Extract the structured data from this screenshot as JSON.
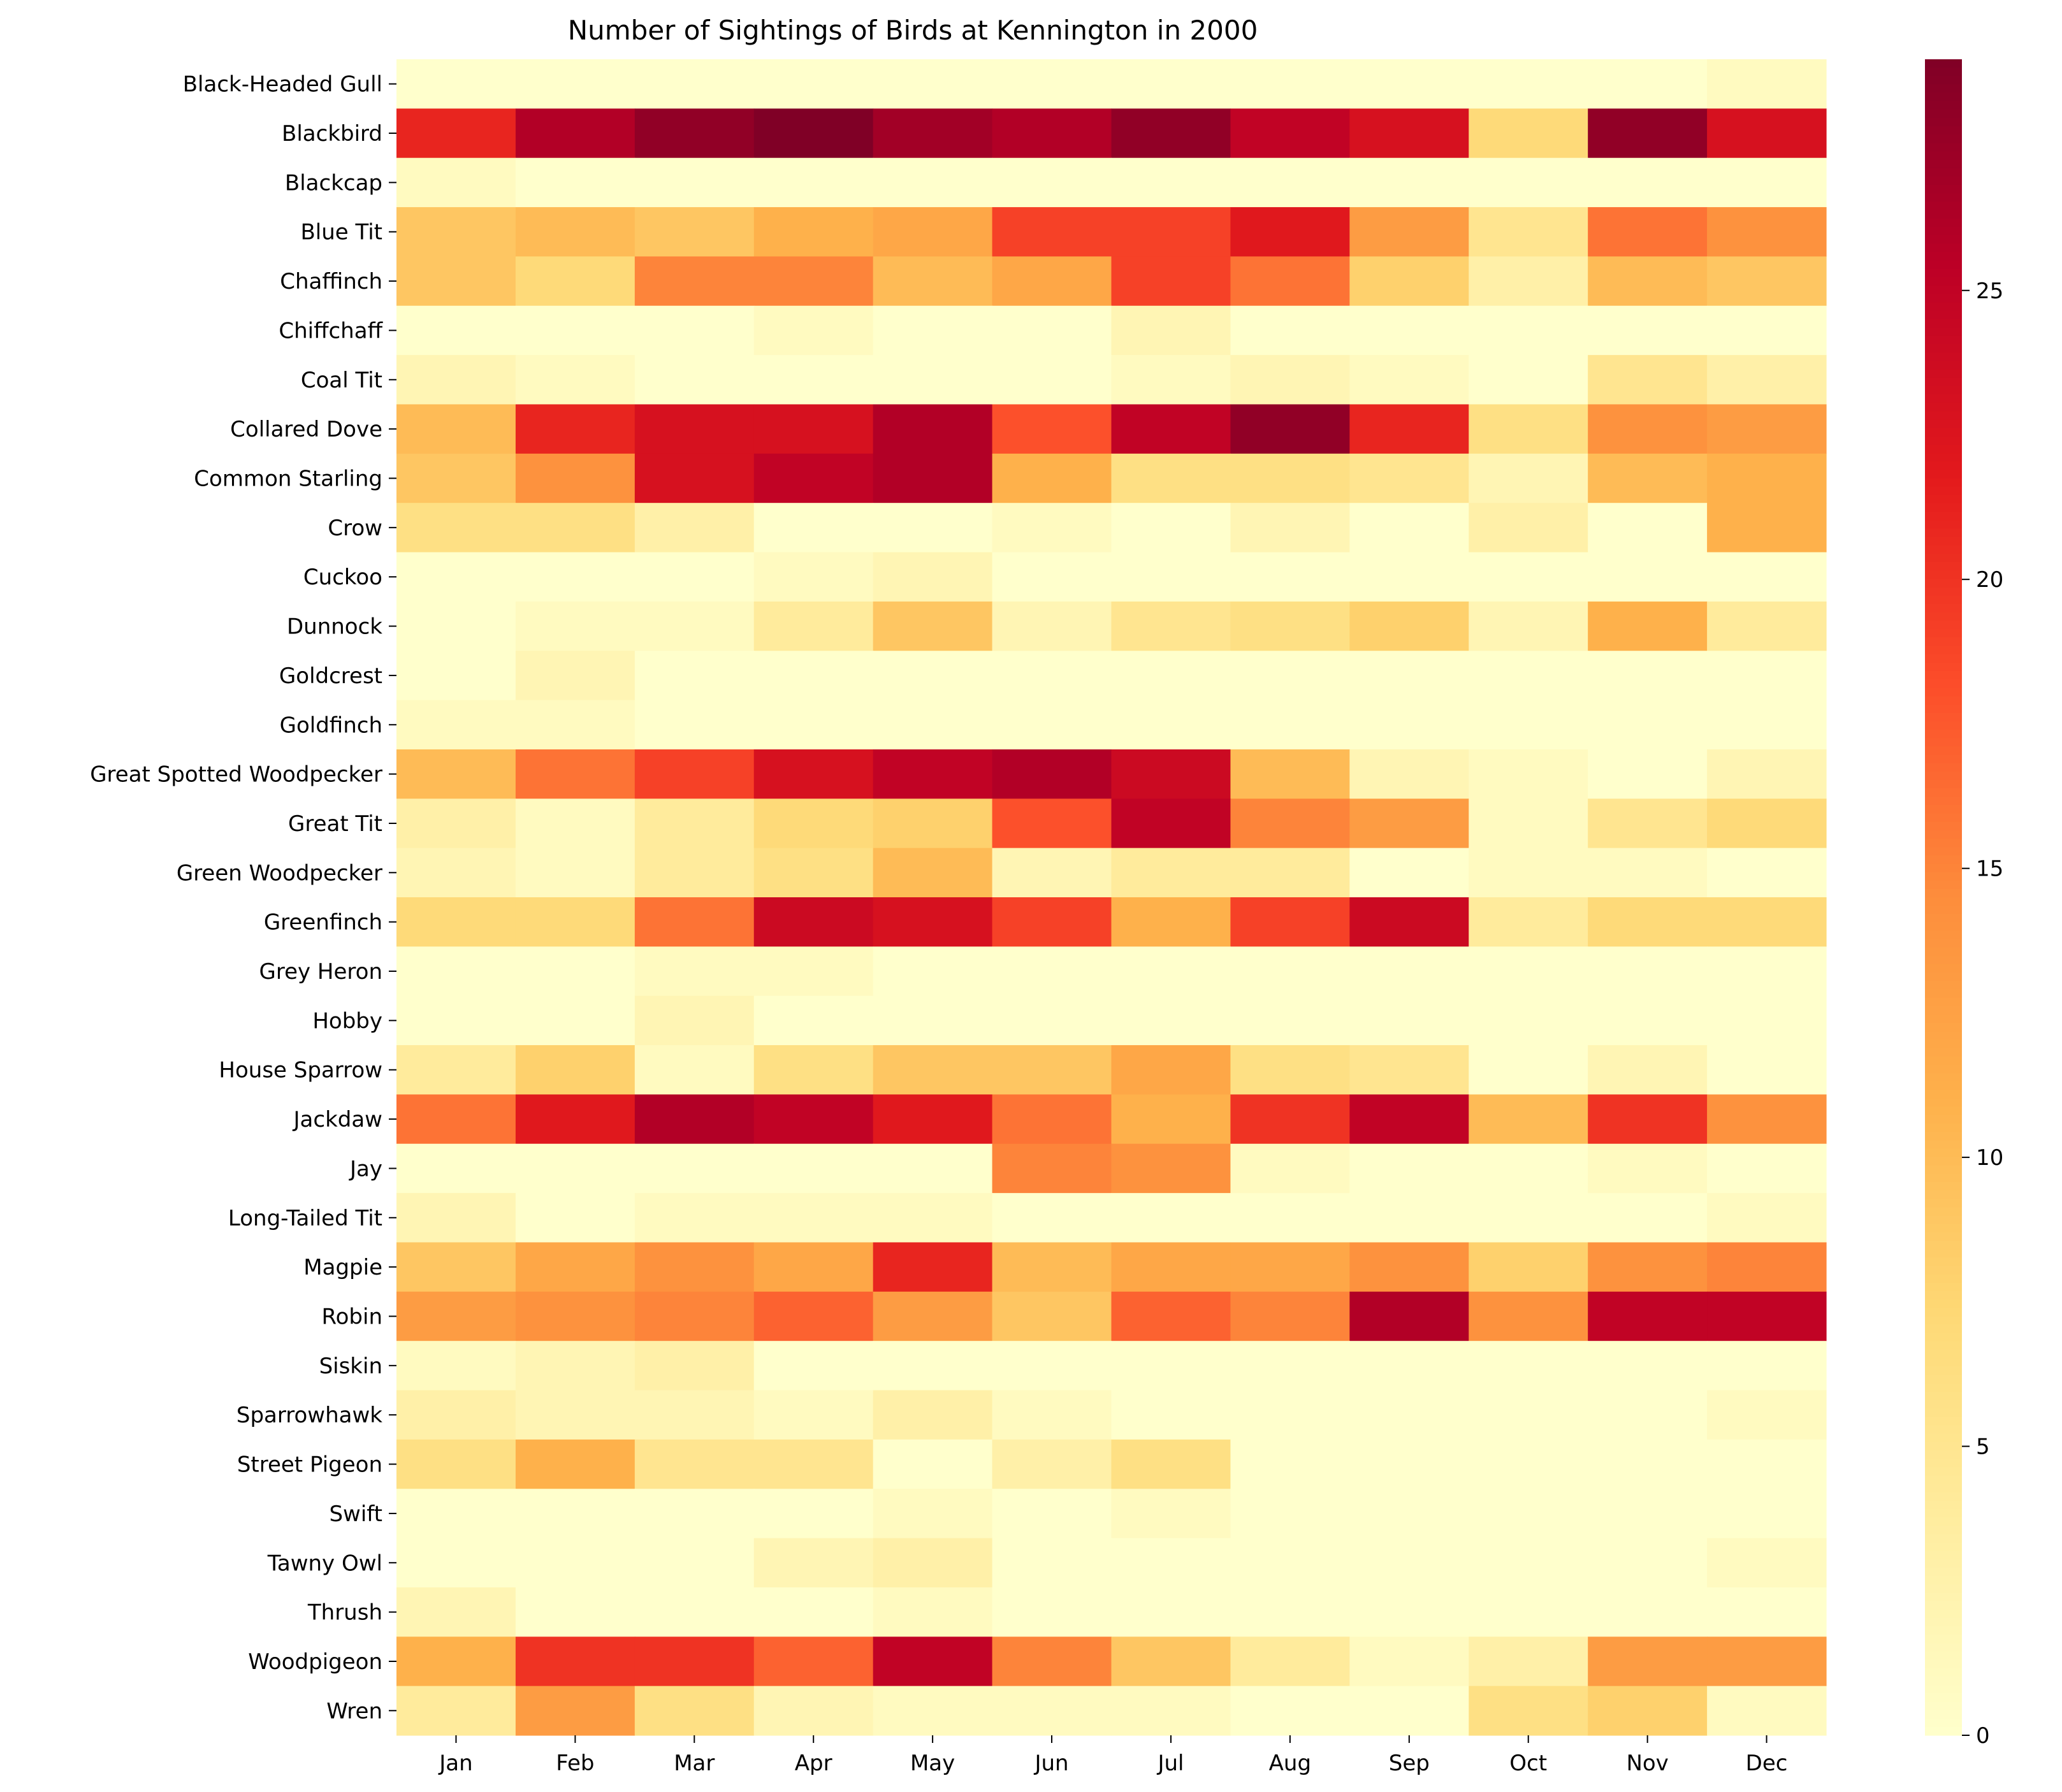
{
  "chart_data": {
    "type": "heatmap",
    "title": "Number of Sightings of Birds at Kennington in 2000",
    "xlabel": "",
    "ylabel": "",
    "colormap": "YlOrRd",
    "colormap_stops": [
      "#ffffcc",
      "#ffeda0",
      "#fed976",
      "#feb24c",
      "#fd8d3c",
      "#fc4e2a",
      "#e31a1c",
      "#bd0026",
      "#800026"
    ],
    "value_range": [
      0,
      29
    ],
    "colorbar_ticks": [
      0,
      5,
      10,
      15,
      20,
      25
    ],
    "x": [
      "Jan",
      "Feb",
      "Mar",
      "Apr",
      "May",
      "Jun",
      "Jul",
      "Aug",
      "Sep",
      "Oct",
      "Nov",
      "Dec"
    ],
    "y": [
      "Black-Headed Gull",
      "Blackbird",
      "Blackcap",
      "Blue Tit",
      "Chaffinch",
      "Chiffchaff",
      "Coal Tit",
      "Collared Dove",
      "Common Starling",
      "Crow",
      "Cuckoo",
      "Dunnock",
      "Goldcrest",
      "Goldfinch",
      "Great Spotted Woodpecker",
      "Great Tit",
      "Green Woodpecker",
      "Greenfinch",
      "Grey Heron",
      "Hobby",
      "House Sparrow",
      "Jackdaw",
      "Jay",
      "Long-Tailed Tit",
      "Magpie",
      "Robin",
      "Siskin",
      "Sparrowhawk",
      "Street Pigeon",
      "Swift",
      "Tawny Owl",
      "Thrush",
      "Woodpigeon",
      "Wren"
    ],
    "values": [
      [
        0,
        0,
        0,
        0,
        0,
        0,
        0,
        0,
        0,
        0,
        0,
        1
      ],
      [
        21,
        26,
        28,
        29,
        27,
        26,
        28,
        25,
        23,
        7,
        28,
        23
      ],
      [
        1,
        0,
        0,
        0,
        0,
        0,
        0,
        0,
        0,
        0,
        0,
        0
      ],
      [
        9,
        10,
        9,
        11,
        12,
        19,
        19,
        22,
        13,
        5,
        16,
        14
      ],
      [
        9,
        7,
        15,
        15,
        10,
        12,
        19,
        16,
        8,
        3,
        10,
        9
      ],
      [
        0,
        0,
        0,
        1,
        0,
        0,
        2,
        0,
        0,
        0,
        0,
        0
      ],
      [
        2,
        1,
        0,
        0,
        0,
        0,
        1,
        2,
        1,
        0,
        5,
        3
      ],
      [
        10,
        21,
        23,
        23,
        26,
        18,
        25,
        28,
        21,
        6,
        14,
        13
      ],
      [
        9,
        14,
        23,
        25,
        26,
        11,
        6,
        6,
        5,
        2,
        10,
        11
      ],
      [
        6,
        6,
        3,
        0,
        0,
        1,
        0,
        2,
        0,
        3,
        0,
        11
      ],
      [
        0,
        0,
        0,
        1,
        2,
        0,
        0,
        0,
        0,
        0,
        0,
        0
      ],
      [
        0,
        1,
        1,
        4,
        9,
        2,
        5,
        6,
        8,
        2,
        11,
        4
      ],
      [
        0,
        2,
        0,
        0,
        0,
        0,
        0,
        0,
        0,
        0,
        0,
        0
      ],
      [
        1,
        1,
        0,
        0,
        0,
        0,
        0,
        0,
        0,
        0,
        0,
        0
      ],
      [
        10,
        16,
        19,
        23,
        25,
        26,
        24,
        10,
        2,
        1,
        0,
        2
      ],
      [
        3,
        1,
        4,
        7,
        8,
        18,
        25,
        15,
        13,
        1,
        5,
        7
      ],
      [
        2,
        1,
        4,
        6,
        10,
        2,
        4,
        4,
        0,
        1,
        1,
        0
      ],
      [
        7,
        7,
        16,
        24,
        23,
        19,
        11,
        19,
        24,
        4,
        7,
        7
      ],
      [
        0,
        0,
        1,
        1,
        0,
        0,
        0,
        0,
        0,
        0,
        0,
        0
      ],
      [
        0,
        0,
        2,
        0,
        0,
        0,
        0,
        0,
        0,
        0,
        0,
        0
      ],
      [
        4,
        8,
        1,
        6,
        9,
        9,
        12,
        6,
        5,
        0,
        2,
        0
      ],
      [
        16,
        22,
        26,
        25,
        22,
        16,
        11,
        20,
        25,
        10,
        20,
        14
      ],
      [
        0,
        0,
        0,
        0,
        0,
        15,
        14,
        1,
        0,
        0,
        1,
        0
      ],
      [
        2,
        0,
        1,
        1,
        1,
        0,
        0,
        0,
        0,
        0,
        0,
        1
      ],
      [
        9,
        12,
        14,
        12,
        21,
        10,
        12,
        12,
        14,
        8,
        14,
        15
      ],
      [
        13,
        14,
        15,
        17,
        13,
        9,
        17,
        15,
        26,
        14,
        25,
        25
      ],
      [
        1,
        2,
        3,
        0,
        0,
        0,
        0,
        0,
        0,
        0,
        0,
        0
      ],
      [
        3,
        2,
        2,
        1,
        3,
        1,
        0,
        0,
        0,
        0,
        0,
        1
      ],
      [
        6,
        11,
        5,
        5,
        0,
        3,
        6,
        0,
        0,
        0,
        0,
        0
      ],
      [
        0,
        0,
        0,
        0,
        1,
        0,
        1,
        0,
        0,
        0,
        0,
        0
      ],
      [
        0,
        0,
        0,
        2,
        3,
        0,
        0,
        0,
        0,
        0,
        0,
        1
      ],
      [
        2,
        0,
        0,
        0,
        1,
        0,
        0,
        0,
        0,
        0,
        0,
        0
      ],
      [
        11,
        20,
        20,
        17,
        25,
        15,
        9,
        4,
        1,
        3,
        13,
        13
      ],
      [
        4,
        13,
        6,
        2,
        1,
        1,
        1,
        0,
        0,
        6,
        8,
        1
      ]
    ]
  }
}
